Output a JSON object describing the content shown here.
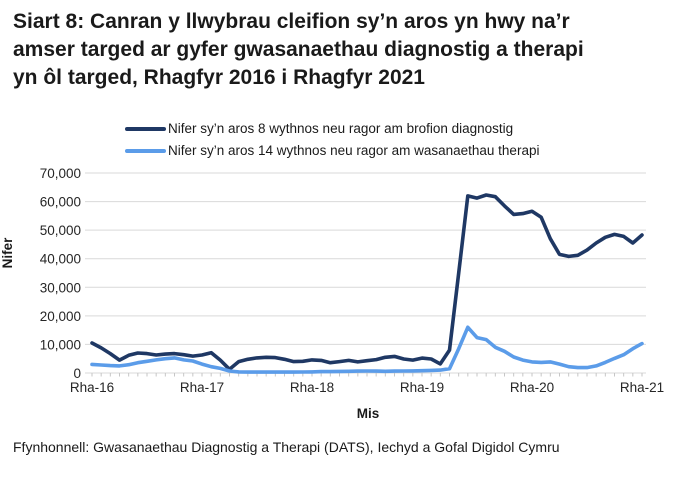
{
  "title_lines": [
    "Siart 8: Canran y llwybrau cleifion sy’n aros yn hwy na’r",
    "amser targed ar gyfer gwasanaethau diagnostig a therapi",
    "yn ôl targed, Rhagfyr 2016 i Rhagfyr 2021"
  ],
  "footer": "Ffynhonnell: Gwasanaethau Diagnostig a Therapi (DATS), Iechyd a Gofal Digidol Cymru",
  "colors": {
    "series_diagnostic": "#1f3864",
    "series_therapy": "#5b9ce9",
    "gridline": "#d9d9d9",
    "tick": "#c6c6c6",
    "text": "#262626"
  },
  "chart_data": {
    "type": "line",
    "title": "",
    "xlabel": "Mis",
    "ylabel": "Nifer",
    "ylim": [
      0,
      70000
    ],
    "grid": true,
    "legend_position": "top",
    "x_period": {
      "start": "Rhagfyr 2016",
      "end": "Rhagfyr 2021",
      "frequency": "misol"
    },
    "y_ticks": [
      {
        "value": 0,
        "label": "0"
      },
      {
        "value": 10000,
        "label": "10,000"
      },
      {
        "value": 20000,
        "label": "20,000"
      },
      {
        "value": 30000,
        "label": "30,000"
      },
      {
        "value": 40000,
        "label": "40,000"
      },
      {
        "value": 50000,
        "label": "50,000"
      },
      {
        "value": 60000,
        "label": "60,000"
      },
      {
        "value": 70000,
        "label": "70,000"
      }
    ],
    "x_ticks": [
      {
        "month_index": 0,
        "label": "Rha-16"
      },
      {
        "month_index": 12,
        "label": "Rha-17"
      },
      {
        "month_index": 24,
        "label": "Rha-18"
      },
      {
        "month_index": 36,
        "label": "Rha-19"
      },
      {
        "month_index": 48,
        "label": "Rha-20"
      },
      {
        "month_index": 60,
        "label": "Rha-21"
      }
    ],
    "series": [
      {
        "name": "Nifer sy’n aros 8 wythnos neu ragor am brofion diagnostig",
        "color": "#1f3864",
        "values": [
          10500,
          8800,
          6800,
          4500,
          6200,
          7000,
          6800,
          6300,
          6600,
          6800,
          6400,
          5900,
          6300,
          7100,
          4500,
          1300,
          4000,
          4800,
          5300,
          5500,
          5400,
          4800,
          4000,
          4100,
          4600,
          4400,
          3600,
          4000,
          4400,
          3900,
          4300,
          4700,
          5500,
          5800,
          4900,
          4500,
          5200,
          4900,
          3200,
          8000,
          35000,
          62000,
          61200,
          62300,
          61700,
          58500,
          55500,
          55800,
          56600,
          54500,
          47000,
          41500,
          40800,
          41200,
          43000,
          45500,
          47500,
          48500,
          47800,
          45500,
          48300
        ]
      },
      {
        "name": "Nifer sy’n aros 14 wythnos neu ragor am wasanaethau therapi",
        "color": "#5b9ce9",
        "values": [
          3000,
          2800,
          2600,
          2500,
          2900,
          3600,
          4100,
          4600,
          5000,
          5300,
          4600,
          4200,
          3100,
          2200,
          1600,
          700,
          400,
          300,
          300,
          300,
          300,
          300,
          300,
          350,
          400,
          500,
          500,
          550,
          600,
          650,
          700,
          650,
          600,
          650,
          700,
          750,
          800,
          900,
          1000,
          1500,
          8500,
          16000,
          12400,
          11700,
          9000,
          7600,
          5600,
          4500,
          3900,
          3700,
          3900,
          3100,
          2200,
          1900,
          1900,
          2500,
          3700,
          5100,
          6400,
          8500,
          10300
        ]
      }
    ]
  }
}
